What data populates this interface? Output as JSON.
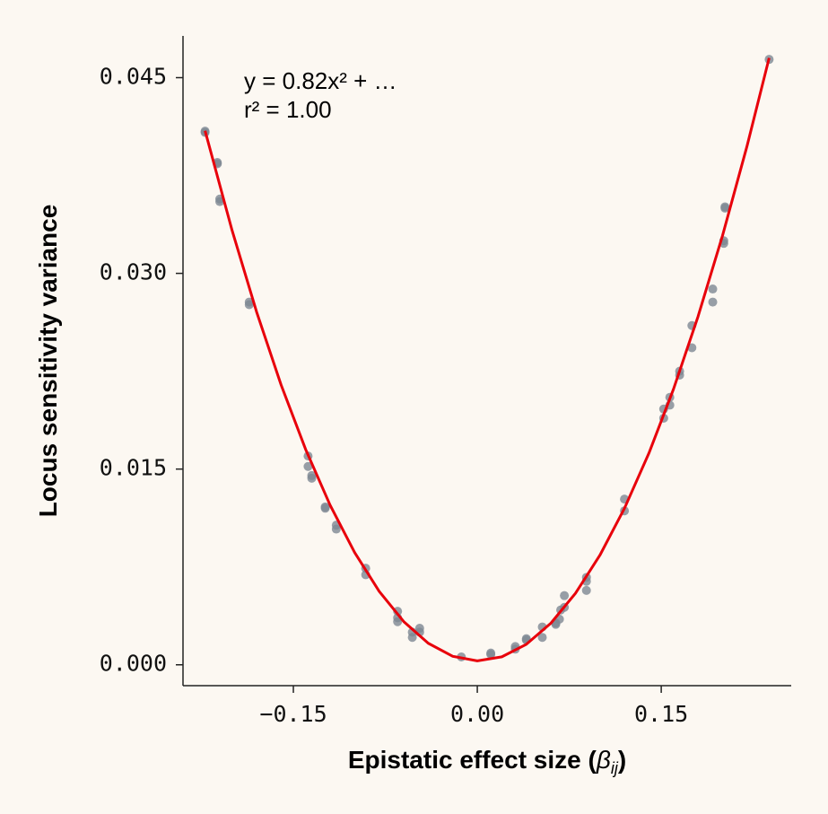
{
  "chart_data": {
    "type": "scatter",
    "xlabel": {
      "text": "Epistatic effect size (",
      "symbol": "β",
      "subscript": "ij",
      "close": ")"
    },
    "ylabel": "Locus sensitivity variance",
    "annotations": [
      "y = 0.82x² + …",
      "r² = 1.00"
    ],
    "x": [
      -0.222,
      -0.222,
      -0.212,
      -0.212,
      -0.21,
      -0.21,
      -0.186,
      -0.186,
      -0.138,
      -0.138,
      -0.135,
      -0.135,
      -0.124,
      -0.124,
      -0.115,
      -0.115,
      -0.091,
      -0.091,
      -0.065,
      -0.065,
      -0.065,
      -0.053,
      -0.053,
      -0.047,
      -0.047,
      -0.013,
      0.011,
      0.011,
      0.031,
      0.031,
      0.04,
      0.04,
      0.053,
      0.053,
      0.064,
      0.064,
      0.067,
      0.068,
      0.071,
      0.071,
      0.089,
      0.089,
      0.089,
      0.12,
      0.12,
      0.152,
      0.152,
      0.157,
      0.157,
      0.165,
      0.165,
      0.175,
      0.175,
      0.192,
      0.192,
      0.201,
      0.201,
      0.202,
      0.202,
      0.238
    ],
    "values": [
      0.0409,
      0.0408,
      0.0385,
      0.0384,
      0.0357,
      0.0355,
      0.0278,
      0.0276,
      0.016,
      0.0152,
      0.0145,
      0.0143,
      0.0121,
      0.012,
      0.0107,
      0.0104,
      0.0074,
      0.0069,
      0.0041,
      0.0036,
      0.0033,
      0.0025,
      0.0021,
      0.0028,
      0.0025,
      0.0006,
      0.0009,
      0.0008,
      0.0014,
      0.0012,
      0.002,
      0.0019,
      0.0029,
      0.0021,
      0.0031,
      0.0032,
      0.0035,
      0.0042,
      0.0044,
      0.0053,
      0.0067,
      0.0064,
      0.0057,
      0.0127,
      0.0118,
      0.0189,
      0.0196,
      0.0205,
      0.0199,
      0.0225,
      0.0222,
      0.026,
      0.0243,
      0.0288,
      0.0278,
      0.0325,
      0.0323,
      0.0351,
      0.035,
      0.0464
    ],
    "color": "#7d8792",
    "fit": {
      "color": "#e8000b",
      "x": [
        -0.222,
        -0.2,
        -0.18,
        -0.16,
        -0.14,
        -0.12,
        -0.1,
        -0.08,
        -0.06,
        -0.04,
        -0.02,
        0,
        0.02,
        0.04,
        0.06,
        0.08,
        0.1,
        0.12,
        0.14,
        0.16,
        0.18,
        0.2,
        0.22,
        0.238
      ],
      "values": [
        0.04093,
        0.0333,
        0.02705,
        0.02145,
        0.01651,
        0.01223,
        0.0086,
        0.00563,
        0.00331,
        0.00165,
        0.00065,
        0.0003,
        0.00061,
        0.00157,
        0.00319,
        0.00547,
        0.0084,
        0.01199,
        0.01623,
        0.02113,
        0.02669,
        0.0329,
        0.03977,
        0.04651
      ]
    },
    "xlim": [
      -0.24,
      0.256
    ],
    "ylim": [
      -0.0016,
      0.0482
    ],
    "xticks": [
      {
        "value": -0.15,
        "label": "−0.15"
      },
      {
        "value": 0,
        "label": "0.00"
      },
      {
        "value": 0.15,
        "label": "0.15"
      }
    ],
    "yticks": [
      {
        "value": 0,
        "label": "0.000"
      },
      {
        "value": 0.015,
        "label": "0.015"
      },
      {
        "value": 0.03,
        "label": "0.030"
      },
      {
        "value": 0.045,
        "label": "0.045"
      }
    ],
    "grid": false
  }
}
